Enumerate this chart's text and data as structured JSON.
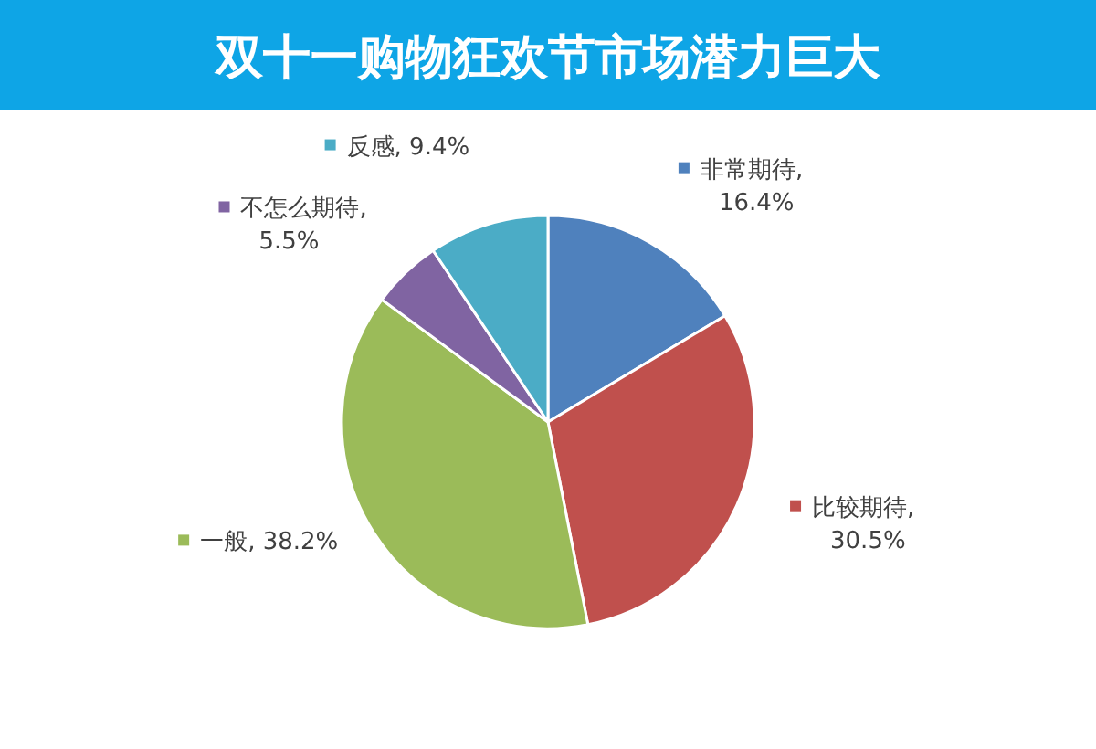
{
  "chart_data": {
    "type": "pie",
    "title": "双十一购物狂欢节市场潜力巨大",
    "categories": [
      "非常期待",
      "比较期待",
      "一般",
      "不怎么期待",
      "反感"
    ],
    "values": [
      16.4,
      30.5,
      38.2,
      5.5,
      9.4
    ],
    "colors": [
      "#4f81bd",
      "#c0504d",
      "#9bbb59",
      "#8064a2",
      "#4bacc6"
    ],
    "legend": "top",
    "value_labels": [
      ", 16.4%",
      ", 30.5%",
      ", 38.2%",
      ", 5.5%",
      ", 9.4%"
    ]
  }
}
